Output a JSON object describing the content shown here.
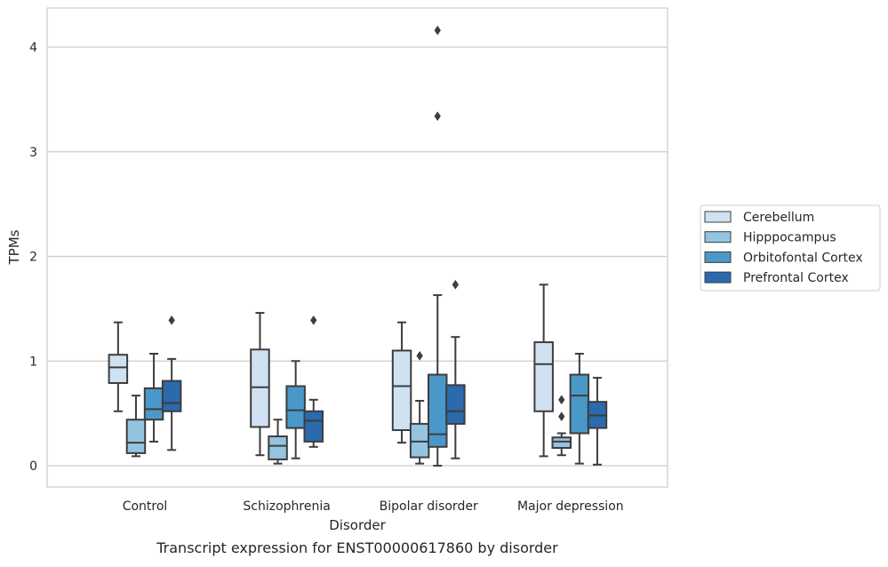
{
  "chart_data": {
    "type": "box",
    "title": "",
    "caption": "Transcript expression for ENST00000617860 by disorder",
    "xlabel": "Disorder",
    "ylabel": "TPMs",
    "ylim": [
      -0.2,
      4.38
    ],
    "yticks": [
      "0",
      "1",
      "2",
      "3",
      "4"
    ],
    "grid": "horizontal",
    "legend_position": "right",
    "categories": [
      "Control",
      "Schizophrenia",
      "Bipolar disorder",
      "Major depression"
    ],
    "series": [
      {
        "name": "Cerebellum",
        "color": "#d0e1f2",
        "boxes": [
          {
            "min": 0.52,
            "q1": 0.79,
            "median": 0.94,
            "q3": 1.06,
            "max": 1.37,
            "outliers": []
          },
          {
            "min": 0.1,
            "q1": 0.37,
            "median": 0.75,
            "q3": 1.11,
            "max": 1.46,
            "outliers": []
          },
          {
            "min": 0.22,
            "q1": 0.34,
            "median": 0.76,
            "q3": 1.1,
            "max": 1.37,
            "outliers": []
          },
          {
            "min": 0.09,
            "q1": 0.52,
            "median": 0.97,
            "q3": 1.18,
            "max": 1.73,
            "outliers": []
          }
        ]
      },
      {
        "name": "Hipppocampus",
        "color": "#94c4df",
        "boxes": [
          {
            "min": 0.09,
            "q1": 0.12,
            "median": 0.22,
            "q3": 0.44,
            "max": 0.67,
            "outliers": []
          },
          {
            "min": 0.02,
            "q1": 0.06,
            "median": 0.19,
            "q3": 0.28,
            "max": 0.44,
            "outliers": []
          },
          {
            "min": 0.02,
            "q1": 0.08,
            "median": 0.23,
            "q3": 0.4,
            "max": 0.62,
            "outliers": [
              1.05
            ]
          },
          {
            "min": 0.1,
            "q1": 0.17,
            "median": 0.23,
            "q3": 0.27,
            "max": 0.31,
            "outliers": [
              0.47,
              0.63
            ]
          }
        ]
      },
      {
        "name": "Orbitofontal Cortex",
        "color": "#4a98c9",
        "boxes": [
          {
            "min": 0.23,
            "q1": 0.44,
            "median": 0.54,
            "q3": 0.74,
            "max": 1.07,
            "outliers": []
          },
          {
            "min": 0.07,
            "q1": 0.36,
            "median": 0.53,
            "q3": 0.76,
            "max": 1.0,
            "outliers": []
          },
          {
            "min": 0.0,
            "q1": 0.18,
            "median": 0.3,
            "q3": 0.87,
            "max": 1.63,
            "outliers": [
              3.34,
              4.16
            ]
          },
          {
            "min": 0.02,
            "q1": 0.31,
            "median": 0.67,
            "q3": 0.87,
            "max": 1.07,
            "outliers": []
          }
        ]
      },
      {
        "name": "Prefrontal Cortex",
        "color": "#2a6aad",
        "boxes": [
          {
            "min": 0.15,
            "q1": 0.52,
            "median": 0.6,
            "q3": 0.81,
            "max": 1.02,
            "outliers": [
              1.39
            ]
          },
          {
            "min": 0.18,
            "q1": 0.23,
            "median": 0.43,
            "q3": 0.52,
            "max": 0.63,
            "outliers": [
              1.39
            ]
          },
          {
            "min": 0.07,
            "q1": 0.4,
            "median": 0.52,
            "q3": 0.77,
            "max": 1.23,
            "outliers": [
              1.73
            ]
          },
          {
            "min": 0.01,
            "q1": 0.36,
            "median": 0.48,
            "q3": 0.61,
            "max": 0.84,
            "outliers": []
          }
        ]
      }
    ]
  }
}
